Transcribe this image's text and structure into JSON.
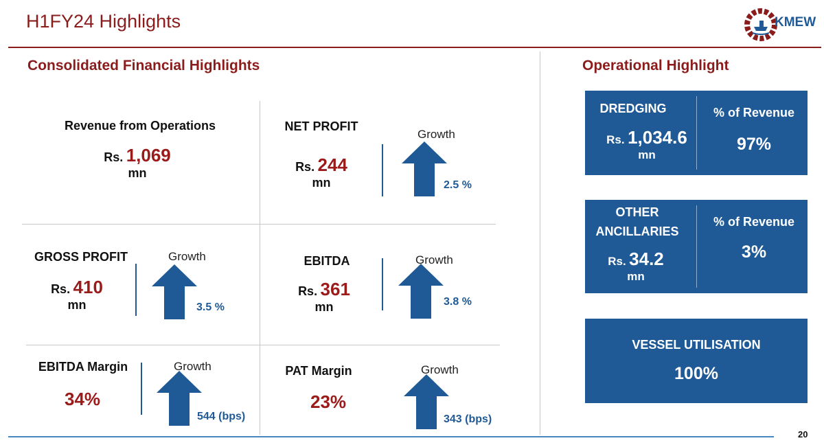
{
  "page": {
    "title": "H1FY24 Highlights",
    "logo_text": "KMEW",
    "page_number": "20"
  },
  "financial": {
    "section_title": "Consolidated Financial Highlights",
    "revenue": {
      "label": "Revenue from Operations",
      "prefix": "Rs.",
      "value": "1,069",
      "unit": "mn"
    },
    "net_profit": {
      "label": "NET PROFIT",
      "prefix": "Rs.",
      "value": "244",
      "unit": "mn",
      "growth_label": "Growth",
      "growth_value": "2.5 %"
    },
    "gross_profit": {
      "label": "GROSS PROFIT",
      "prefix": "Rs.",
      "value": "410",
      "unit": "mn",
      "growth_label": "Growth",
      "growth_value": "3.5 %"
    },
    "ebitda": {
      "label": "EBITDA",
      "prefix": "Rs.",
      "value": "361",
      "unit": "mn",
      "growth_label": "Growth",
      "growth_value": "3.8 %"
    },
    "ebitda_margin": {
      "label": "EBITDA Margin",
      "value": "34%",
      "growth_label": "Growth",
      "growth_value": "544 (bps)"
    },
    "pat_margin": {
      "label": "PAT Margin",
      "value": "23%",
      "growth_label": "Growth",
      "growth_value": "343 (bps)"
    }
  },
  "operational": {
    "section_title": "Operational Highlight",
    "dredging": {
      "label": "DREDGING",
      "prefix": "Rs.",
      "value": "1,034.6",
      "unit": "mn",
      "share_label": "% of Revenue",
      "share_value": "97%"
    },
    "other": {
      "label_line1": "OTHER",
      "label_line2": "ANCILLARIES",
      "prefix": "Rs.",
      "value": "34.2",
      "unit": "mn",
      "share_label": "% of Revenue",
      "share_value": "3%"
    },
    "vessel": {
      "label": "VESSEL UTILISATION",
      "value": "100%"
    }
  },
  "colors": {
    "accent_red": "#8b1c1c",
    "value_red": "#9b1b1b",
    "brand_blue": "#1f5a96"
  }
}
